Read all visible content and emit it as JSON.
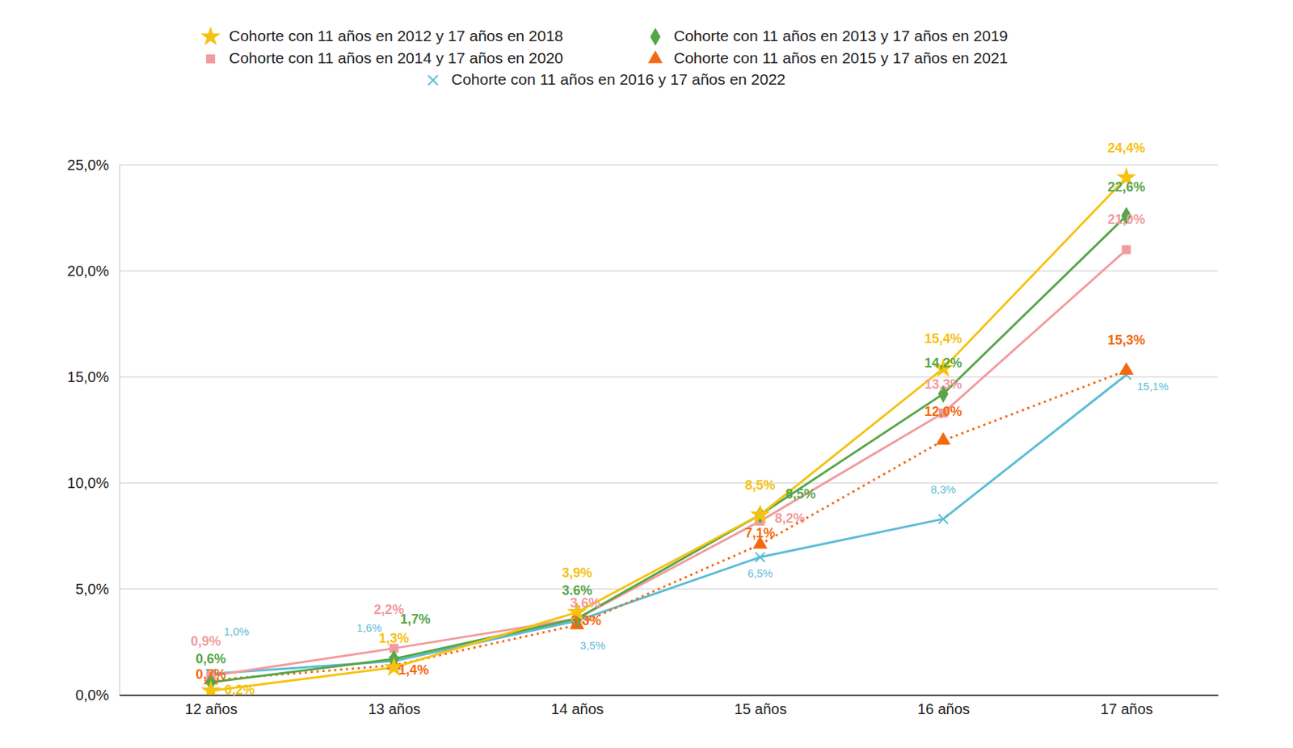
{
  "chart_data": {
    "type": "line",
    "categories": [
      "12 años",
      "13 años",
      "14 años",
      "15 años",
      "16 años",
      "17 años"
    ],
    "ylim": [
      0,
      25
    ],
    "yticks": [
      {
        "value": 0,
        "label": "0,0%"
      },
      {
        "value": 5,
        "label": "5,0%"
      },
      {
        "value": 10,
        "label": "10,0%"
      },
      {
        "value": 15,
        "label": "15,0%"
      },
      {
        "value": 20,
        "label": "20,0%"
      },
      {
        "value": 25,
        "label": "25,0%"
      }
    ],
    "grid": true,
    "legend": "top",
    "data_labels": true,
    "series": [
      {
        "name": "Cohorte con 11 años en 2012 y 17 años en 2018",
        "color": "#f5c211",
        "marker": "star",
        "line_style": "solid",
        "values": [
          0.2,
          1.3,
          3.9,
          8.5,
          15.4,
          24.4
        ],
        "value_labels": [
          "0,2%",
          "1,3%",
          "3,9%",
          "8,5%",
          "15,4%",
          "24,4%"
        ]
      },
      {
        "name": "Cohorte con 11 años en 2013 y 17 años en 2019",
        "color": "#55a648",
        "marker": "diamond",
        "line_style": "solid",
        "values": [
          0.6,
          1.7,
          3.6,
          8.5,
          14.2,
          22.6
        ],
        "value_labels": [
          "0,6%",
          "1,7%",
          "3.6%",
          "8,5%",
          "14,2%",
          "22,6%"
        ]
      },
      {
        "name": "Cohorte con 11 años en 2014 y 17 años en 2020",
        "color": "#f29b9e",
        "marker": "square",
        "line_style": "solid",
        "values": [
          0.9,
          2.2,
          3.6,
          8.2,
          13.3,
          21.0
        ],
        "value_labels": [
          "0,9%",
          "2,2%",
          "3,6%",
          "8,2%",
          "13,3%",
          "21,0%"
        ]
      },
      {
        "name": "Cohorte con 11 años en 2015 y 17 años en 2021",
        "color": "#f26a10",
        "marker": "triangle",
        "line_style": "dotted",
        "values": [
          0.7,
          1.4,
          3.3,
          7.1,
          12.0,
          15.3
        ],
        "value_labels": [
          "0,7%",
          "1,4%",
          "3,3%",
          "7,1%",
          "12,0%",
          "15,3%"
        ]
      },
      {
        "name": "Cohorte con 11 años en 2016 y 17 años en 2022",
        "color": "#5bbcd6",
        "marker": "x",
        "line_style": "solid",
        "values": [
          1.0,
          1.6,
          3.5,
          6.5,
          8.3,
          15.1
        ],
        "value_labels": [
          "1,0%",
          "1,6%",
          "3,5%",
          "6,5%",
          "8,3%",
          "15,1%"
        ]
      }
    ]
  }
}
